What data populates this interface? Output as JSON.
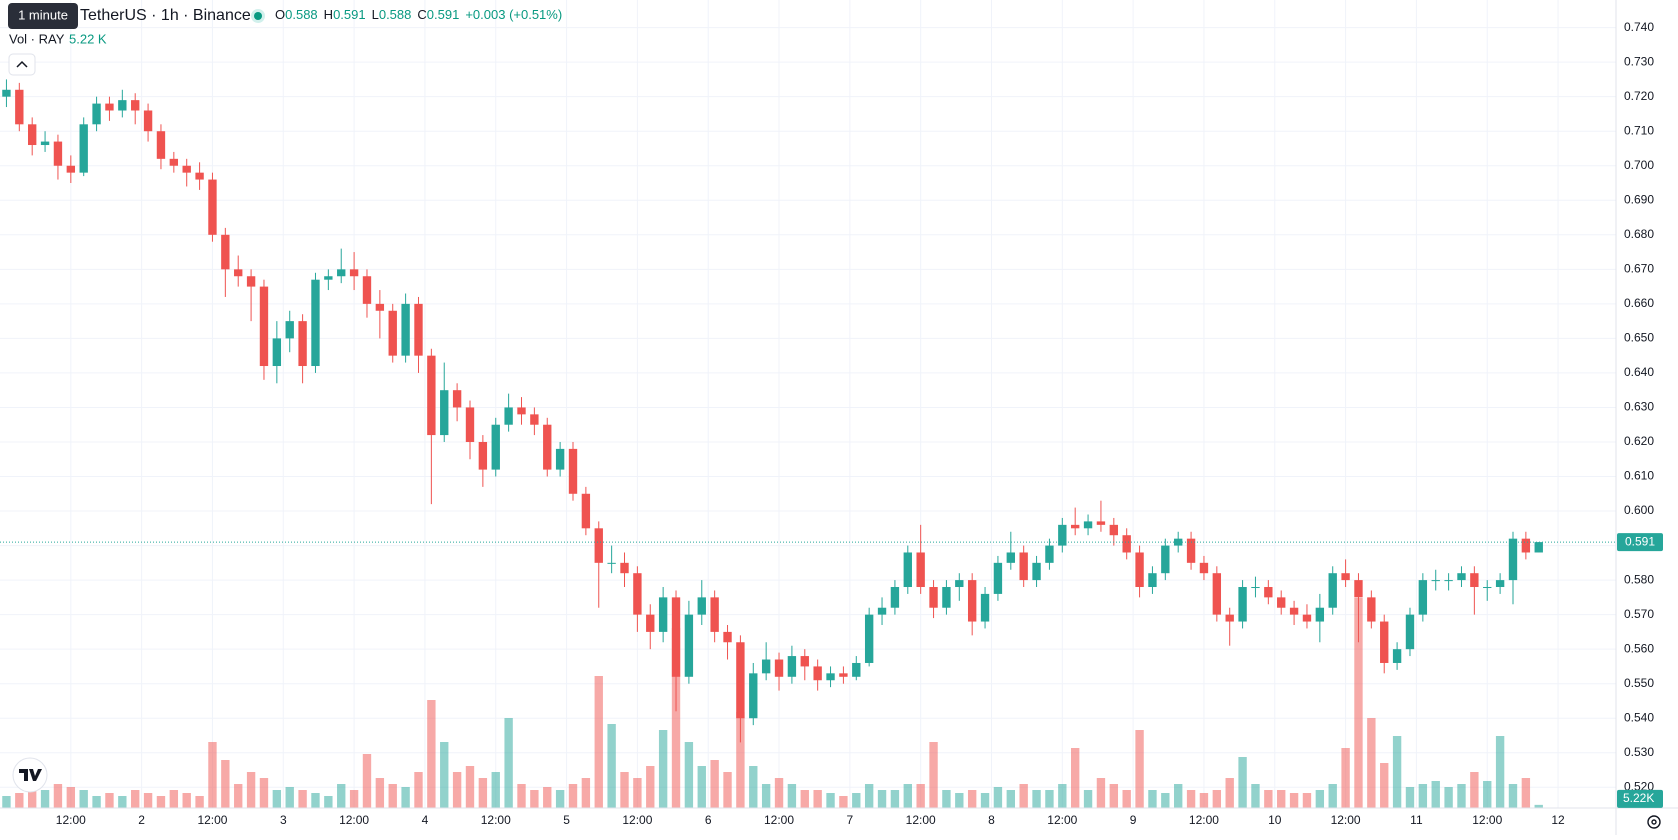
{
  "chart_data": {
    "type": "candlestick",
    "title": "TetherUS · 1h · Binance",
    "interval_tooltip": "1 minute",
    "ohlc_labels": [
      "O",
      "H",
      "L",
      "C"
    ],
    "change": "+0.003 (+0.51%)",
    "up_color": "#26a69a",
    "down_color": "#ef5350",
    "candles": [
      [
        0.72,
        0.725,
        0.717,
        0.722
      ],
      [
        0.722,
        0.724,
        0.71,
        0.712
      ],
      [
        0.712,
        0.714,
        0.703,
        0.706
      ],
      [
        0.706,
        0.71,
        0.704,
        0.707
      ],
      [
        0.707,
        0.709,
        0.696,
        0.7
      ],
      [
        0.7,
        0.703,
        0.695,
        0.698
      ],
      [
        0.698,
        0.714,
        0.697,
        0.712
      ],
      [
        0.712,
        0.72,
        0.71,
        0.718
      ],
      [
        0.718,
        0.72,
        0.713,
        0.716
      ],
      [
        0.716,
        0.722,
        0.714,
        0.719
      ],
      [
        0.719,
        0.721,
        0.712,
        0.716
      ],
      [
        0.716,
        0.718,
        0.707,
        0.71
      ],
      [
        0.71,
        0.712,
        0.699,
        0.702
      ],
      [
        0.702,
        0.704,
        0.698,
        0.7
      ],
      [
        0.7,
        0.702,
        0.694,
        0.698
      ],
      [
        0.698,
        0.701,
        0.693,
        0.696
      ],
      [
        0.696,
        0.698,
        0.678,
        0.68
      ],
      [
        0.68,
        0.682,
        0.662,
        0.67
      ],
      [
        0.67,
        0.674,
        0.665,
        0.668
      ],
      [
        0.668,
        0.67,
        0.655,
        0.665
      ],
      [
        0.665,
        0.667,
        0.638,
        0.642
      ],
      [
        0.642,
        0.655,
        0.637,
        0.65
      ],
      [
        0.65,
        0.658,
        0.646,
        0.655
      ],
      [
        0.655,
        0.657,
        0.637,
        0.642
      ],
      [
        0.642,
        0.669,
        0.64,
        0.667
      ],
      [
        0.667,
        0.67,
        0.664,
        0.668
      ],
      [
        0.668,
        0.676,
        0.666,
        0.67
      ],
      [
        0.67,
        0.675,
        0.664,
        0.668
      ],
      [
        0.668,
        0.67,
        0.656,
        0.66
      ],
      [
        0.66,
        0.664,
        0.65,
        0.658
      ],
      [
        0.658,
        0.66,
        0.643,
        0.645
      ],
      [
        0.645,
        0.663,
        0.643,
        0.66
      ],
      [
        0.66,
        0.662,
        0.64,
        0.645
      ],
      [
        0.645,
        0.647,
        0.602,
        0.622
      ],
      [
        0.622,
        0.643,
        0.62,
        0.635
      ],
      [
        0.635,
        0.637,
        0.626,
        0.63
      ],
      [
        0.63,
        0.632,
        0.615,
        0.62
      ],
      [
        0.62,
        0.622,
        0.607,
        0.612
      ],
      [
        0.612,
        0.627,
        0.61,
        0.625
      ],
      [
        0.625,
        0.634,
        0.623,
        0.63
      ],
      [
        0.63,
        0.633,
        0.625,
        0.628
      ],
      [
        0.628,
        0.63,
        0.622,
        0.625
      ],
      [
        0.625,
        0.627,
        0.61,
        0.612
      ],
      [
        0.612,
        0.62,
        0.61,
        0.618
      ],
      [
        0.618,
        0.62,
        0.603,
        0.605
      ],
      [
        0.605,
        0.607,
        0.593,
        0.595
      ],
      [
        0.595,
        0.597,
        0.572,
        0.585
      ],
      [
        0.585,
        0.59,
        0.582,
        0.585
      ],
      [
        0.585,
        0.588,
        0.578,
        0.582
      ],
      [
        0.582,
        0.584,
        0.565,
        0.57
      ],
      [
        0.57,
        0.573,
        0.56,
        0.565
      ],
      [
        0.565,
        0.578,
        0.562,
        0.575
      ],
      [
        0.575,
        0.577,
        0.542,
        0.552
      ],
      [
        0.552,
        0.574,
        0.55,
        0.57
      ],
      [
        0.57,
        0.58,
        0.567,
        0.575
      ],
      [
        0.575,
        0.577,
        0.562,
        0.565
      ],
      [
        0.565,
        0.567,
        0.557,
        0.562
      ],
      [
        0.562,
        0.564,
        0.533,
        0.54
      ],
      [
        0.54,
        0.556,
        0.538,
        0.553
      ],
      [
        0.553,
        0.562,
        0.551,
        0.557
      ],
      [
        0.557,
        0.559,
        0.548,
        0.552
      ],
      [
        0.552,
        0.561,
        0.55,
        0.558
      ],
      [
        0.558,
        0.56,
        0.551,
        0.555
      ],
      [
        0.555,
        0.557,
        0.548,
        0.551
      ],
      [
        0.551,
        0.555,
        0.549,
        0.553
      ],
      [
        0.553,
        0.555,
        0.55,
        0.552
      ],
      [
        0.552,
        0.558,
        0.551,
        0.556
      ],
      [
        0.556,
        0.572,
        0.555,
        0.57
      ],
      [
        0.57,
        0.575,
        0.567,
        0.572
      ],
      [
        0.572,
        0.58,
        0.57,
        0.578
      ],
      [
        0.578,
        0.59,
        0.576,
        0.588
      ],
      [
        0.588,
        0.596,
        0.576,
        0.578
      ],
      [
        0.578,
        0.58,
        0.569,
        0.572
      ],
      [
        0.572,
        0.58,
        0.57,
        0.578
      ],
      [
        0.578,
        0.582,
        0.574,
        0.58
      ],
      [
        0.58,
        0.582,
        0.564,
        0.568
      ],
      [
        0.568,
        0.578,
        0.566,
        0.576
      ],
      [
        0.576,
        0.587,
        0.574,
        0.585
      ],
      [
        0.585,
        0.594,
        0.583,
        0.588
      ],
      [
        0.588,
        0.59,
        0.578,
        0.58
      ],
      [
        0.58,
        0.587,
        0.578,
        0.585
      ],
      [
        0.585,
        0.592,
        0.583,
        0.59
      ],
      [
        0.59,
        0.598,
        0.588,
        0.596
      ],
      [
        0.596,
        0.601,
        0.593,
        0.595
      ],
      [
        0.595,
        0.599,
        0.593,
        0.597
      ],
      [
        0.597,
        0.603,
        0.594,
        0.596
      ],
      [
        0.596,
        0.598,
        0.59,
        0.593
      ],
      [
        0.593,
        0.595,
        0.586,
        0.588
      ],
      [
        0.588,
        0.59,
        0.575,
        0.578
      ],
      [
        0.578,
        0.584,
        0.576,
        0.582
      ],
      [
        0.582,
        0.592,
        0.58,
        0.59
      ],
      [
        0.59,
        0.594,
        0.588,
        0.592
      ],
      [
        0.592,
        0.594,
        0.583,
        0.585
      ],
      [
        0.585,
        0.587,
        0.58,
        0.582
      ],
      [
        0.582,
        0.584,
        0.568,
        0.57
      ],
      [
        0.57,
        0.572,
        0.561,
        0.568
      ],
      [
        0.568,
        0.58,
        0.566,
        0.578
      ],
      [
        0.578,
        0.581,
        0.575,
        0.578
      ],
      [
        0.578,
        0.58,
        0.573,
        0.575
      ],
      [
        0.575,
        0.577,
        0.57,
        0.572
      ],
      [
        0.572,
        0.574,
        0.567,
        0.57
      ],
      [
        0.57,
        0.573,
        0.566,
        0.568
      ],
      [
        0.568,
        0.576,
        0.562,
        0.572
      ],
      [
        0.572,
        0.584,
        0.57,
        0.582
      ],
      [
        0.582,
        0.586,
        0.578,
        0.58
      ],
      [
        0.58,
        0.582,
        0.562,
        0.575
      ],
      [
        0.575,
        0.577,
        0.566,
        0.568
      ],
      [
        0.568,
        0.57,
        0.553,
        0.556
      ],
      [
        0.556,
        0.562,
        0.554,
        0.56
      ],
      [
        0.56,
        0.572,
        0.558,
        0.57
      ],
      [
        0.57,
        0.582,
        0.568,
        0.58
      ],
      [
        0.58,
        0.583,
        0.577,
        0.58
      ],
      [
        0.58,
        0.582,
        0.577,
        0.58
      ],
      [
        0.58,
        0.584,
        0.578,
        0.582
      ],
      [
        0.582,
        0.584,
        0.57,
        0.578
      ],
      [
        0.578,
        0.58,
        0.574,
        0.578
      ],
      [
        0.578,
        0.582,
        0.576,
        0.58
      ],
      [
        0.58,
        0.594,
        0.573,
        0.592
      ],
      [
        0.592,
        0.594,
        0.586,
        0.588
      ],
      [
        0.588,
        0.591,
        0.588,
        0.591
      ]
    ],
    "volume": {
      "name": "Vol · RAY",
      "current_label": "5.22 K",
      "axis_label": "5.22K",
      "ylim": [
        0,
        500
      ],
      "values": [
        20,
        25,
        70,
        30,
        40,
        35,
        30,
        20,
        25,
        20,
        30,
        25,
        20,
        30,
        25,
        20,
        110,
        80,
        40,
        60,
        50,
        30,
        35,
        30,
        25,
        20,
        40,
        30,
        90,
        50,
        40,
        35,
        60,
        180,
        110,
        60,
        70,
        50,
        60,
        150,
        40,
        30,
        35,
        30,
        40,
        50,
        220,
        140,
        60,
        50,
        70,
        130,
        300,
        110,
        70,
        80,
        60,
        160,
        70,
        40,
        50,
        40,
        30,
        30,
        25,
        20,
        25,
        40,
        30,
        30,
        40,
        40,
        110,
        30,
        25,
        30,
        25,
        35,
        30,
        40,
        30,
        30,
        40,
        100,
        30,
        50,
        40,
        30,
        130,
        30,
        25,
        40,
        30,
        25,
        30,
        50,
        85,
        40,
        30,
        30,
        25,
        25,
        30,
        40,
        100,
        350,
        150,
        75,
        120,
        35,
        40,
        45,
        35,
        40,
        60,
        45,
        120,
        40,
        50,
        5.22
      ]
    },
    "xlim": [
      -0.5,
      125
    ],
    "xticks": [
      {
        "value": 5,
        "label": "12:00"
      },
      {
        "value": 10.5,
        "label": "2"
      },
      {
        "value": 16,
        "label": "12:00"
      },
      {
        "value": 21.5,
        "label": "3"
      },
      {
        "value": 27,
        "label": "12:00"
      },
      {
        "value": 32.5,
        "label": "4"
      },
      {
        "value": 38,
        "label": "12:00"
      },
      {
        "value": 43.5,
        "label": "5"
      },
      {
        "value": 49,
        "label": "12:00"
      },
      {
        "value": 54.5,
        "label": "6"
      },
      {
        "value": 60,
        "label": "12:00"
      },
      {
        "value": 65.5,
        "label": "7"
      },
      {
        "value": 71,
        "label": "12:00"
      },
      {
        "value": 76.5,
        "label": "8"
      },
      {
        "value": 82,
        "label": "12:00"
      },
      {
        "value": 87.5,
        "label": "9"
      },
      {
        "value": 93,
        "label": "12:00"
      },
      {
        "value": 98.5,
        "label": "10"
      },
      {
        "value": 104,
        "label": "12:00"
      },
      {
        "value": 109.5,
        "label": "11"
      },
      {
        "value": 115,
        "label": "12:00"
      },
      {
        "value": 120.5,
        "label": "12"
      }
    ],
    "ylim": [
      0.514,
      0.748
    ],
    "yticks": [
      {
        "value": 0.74,
        "label": "0.740"
      },
      {
        "value": 0.73,
        "label": "0.730"
      },
      {
        "value": 0.72,
        "label": "0.720"
      },
      {
        "value": 0.71,
        "label": "0.710"
      },
      {
        "value": 0.7,
        "label": "0.700"
      },
      {
        "value": 0.69,
        "label": "0.690"
      },
      {
        "value": 0.68,
        "label": "0.680"
      },
      {
        "value": 0.67,
        "label": "0.670"
      },
      {
        "value": 0.66,
        "label": "0.660"
      },
      {
        "value": 0.65,
        "label": "0.650"
      },
      {
        "value": 0.64,
        "label": "0.640"
      },
      {
        "value": 0.63,
        "label": "0.630"
      },
      {
        "value": 0.62,
        "label": "0.620"
      },
      {
        "value": 0.61,
        "label": "0.610"
      },
      {
        "value": 0.6,
        "label": "0.600"
      },
      {
        "value": 0.59,
        "label": "0.590"
      },
      {
        "value": 0.58,
        "label": "0.580"
      },
      {
        "value": 0.57,
        "label": "0.570"
      },
      {
        "value": 0.56,
        "label": "0.560"
      },
      {
        "value": 0.55,
        "label": "0.550"
      },
      {
        "value": 0.54,
        "label": "0.540"
      },
      {
        "value": 0.53,
        "label": "0.530"
      },
      {
        "value": 0.52,
        "label": "0.520"
      }
    ],
    "grid": true
  }
}
